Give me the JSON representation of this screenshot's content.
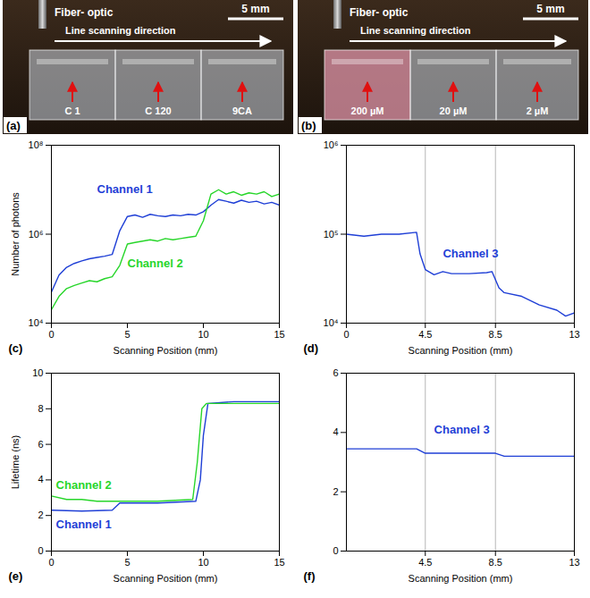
{
  "photos": [
    {
      "panel": "(a)",
      "fiber": "Fiber- optic",
      "scale_bar": "5 mm",
      "scan": "Line scanning direction",
      "samples": [
        "C 1",
        "C 120",
        "9CA"
      ]
    },
    {
      "panel": "(b)",
      "fiber": "Fiber- optic",
      "scale_bar": "5 mm",
      "scan": "Line scanning direction",
      "samples": [
        "200 µM",
        "20 µM",
        "2 µM"
      ]
    }
  ],
  "chart_data": [
    {
      "type": "line",
      "panel": "(c)",
      "xlabel": "Scanning Position (mm)",
      "ylabel": "Number of photons",
      "log": "y",
      "xlim": [
        0,
        15
      ],
      "xticks": [
        0,
        5,
        10,
        15
      ],
      "ylim": [
        10000,
        100000000
      ],
      "yticks": [
        {
          "value": 10000,
          "label": "10⁴"
        },
        {
          "value": 1000000,
          "label": "10⁶"
        },
        {
          "value": 100000000,
          "label": "10⁸"
        }
      ],
      "series": [
        {
          "name": "Channel 1",
          "color": "#1f3fd6",
          "x": [
            0,
            0.5,
            1,
            1.5,
            2,
            2.5,
            3,
            3.5,
            4,
            4.5,
            5,
            5.5,
            6,
            6.5,
            7,
            7.5,
            8,
            8.5,
            9,
            9.5,
            10,
            10.5,
            11,
            11.5,
            12,
            12.5,
            13,
            13.5,
            14,
            14.5,
            15
          ],
          "values": [
            50000,
            120000,
            180000,
            220000,
            250000,
            280000,
            300000,
            320000,
            350000,
            1200000,
            2500000,
            2700000,
            2400000,
            2800000,
            2600000,
            2500000,
            2700000,
            2600000,
            2800000,
            2700000,
            3200000,
            4500000,
            6000000,
            5500000,
            5000000,
            5800000,
            5200000,
            5500000,
            4800000,
            5200000,
            4500000
          ]
        },
        {
          "name": "Channel 2",
          "color": "#27d62a",
          "x": [
            0,
            0.5,
            1,
            1.5,
            2,
            2.5,
            3,
            3.5,
            4,
            4.5,
            5,
            5.5,
            6,
            6.5,
            7,
            7.5,
            8,
            8.5,
            9,
            9.5,
            10,
            10.5,
            11,
            11.5,
            12,
            12.5,
            13,
            13.5,
            14,
            14.5,
            15
          ],
          "values": [
            20000,
            40000,
            60000,
            70000,
            80000,
            90000,
            85000,
            100000,
            110000,
            200000,
            600000,
            650000,
            700000,
            750000,
            700000,
            800000,
            750000,
            800000,
            850000,
            900000,
            2000000,
            8000000,
            10000000,
            8000000,
            9000000,
            7500000,
            8500000,
            8000000,
            9000000,
            7000000,
            8000000
          ]
        }
      ],
      "annotations": [
        {
          "text": "Channel 1",
          "x": 3,
          "y": 10000000
        },
        {
          "text": "Channel 2",
          "x": 5,
          "y": 220000
        }
      ]
    },
    {
      "type": "line",
      "panel": "(d)",
      "xlabel": "Scanning Position (mm)",
      "log": "y",
      "grid": "x",
      "xlim": [
        0,
        13
      ],
      "xticks": [
        0,
        4.5,
        8.5,
        13
      ],
      "ylim": [
        10000,
        1000000
      ],
      "yticks": [
        {
          "value": 10000,
          "label": "10⁴"
        },
        {
          "value": 100000,
          "label": "10⁵"
        },
        {
          "value": 1000000,
          "label": "10⁶"
        }
      ],
      "series": [
        {
          "name": "Channel 3",
          "color": "#1f3fd6",
          "x": [
            0,
            1,
            2,
            3,
            4,
            4.2,
            4.5,
            5,
            5.5,
            6,
            7,
            8,
            8.3,
            8.7,
            9,
            10,
            11,
            12,
            12.5,
            13
          ],
          "values": [
            100000,
            95000,
            100000,
            100000,
            105000,
            60000,
            40000,
            35000,
            38000,
            36000,
            36000,
            37000,
            38000,
            25000,
            22000,
            20000,
            16000,
            14000,
            12000,
            13000
          ]
        }
      ],
      "annotations": [
        {
          "text": "Channel 3",
          "x": 5.5,
          "y": 60000
        }
      ]
    },
    {
      "type": "line",
      "panel": "(e)",
      "xlabel": "Scanning Position (mm)",
      "ylabel": "Lifetime (ns)",
      "xlim": [
        0,
        15
      ],
      "xticks": [
        0,
        5,
        10,
        15
      ],
      "ylim": [
        0,
        10
      ],
      "yticks": [
        0,
        2,
        4,
        6,
        8,
        10
      ],
      "series": [
        {
          "name": "Channel 1",
          "color": "#1f3fd6",
          "x": [
            0,
            2,
            4,
            4.5,
            5,
            7,
            9.5,
            9.8,
            10,
            10.3,
            12,
            15
          ],
          "values": [
            2.3,
            2.25,
            2.3,
            2.7,
            2.7,
            2.7,
            2.8,
            4,
            6.5,
            8.3,
            8.4,
            8.4
          ]
        },
        {
          "name": "Channel 2",
          "color": "#27d62a",
          "x": [
            0,
            1,
            2,
            3,
            4,
            5,
            7,
            9.3,
            9.6,
            9.9,
            10.2,
            12,
            15
          ],
          "values": [
            3.1,
            2.9,
            2.9,
            2.8,
            2.8,
            2.8,
            2.8,
            2.9,
            5,
            8,
            8.3,
            8.3,
            8.3
          ]
        }
      ],
      "annotations": [
        {
          "text": "Channel 2",
          "x": 0.3,
          "y": 3.7
        },
        {
          "text": "Channel 1",
          "x": 0.3,
          "y": 1.5
        }
      ]
    },
    {
      "type": "line",
      "panel": "(f)",
      "xlabel": "Scanning Position (mm)",
      "grid": "x",
      "xlim": [
        0,
        13
      ],
      "xticks": [
        4.5,
        8.5,
        13
      ],
      "ylim": [
        0,
        6
      ],
      "yticks": [
        0,
        2,
        4,
        6
      ],
      "series": [
        {
          "name": "Channel 3",
          "color": "#1f3fd6",
          "x": [
            0,
            2,
            4,
            4.5,
            6,
            8.5,
            9,
            11,
            13
          ],
          "values": [
            3.45,
            3.45,
            3.45,
            3.3,
            3.3,
            3.3,
            3.2,
            3.2,
            3.2
          ]
        }
      ],
      "annotations": [
        {
          "text": "Channel 3",
          "x": 5,
          "y": 4.1
        }
      ]
    }
  ]
}
